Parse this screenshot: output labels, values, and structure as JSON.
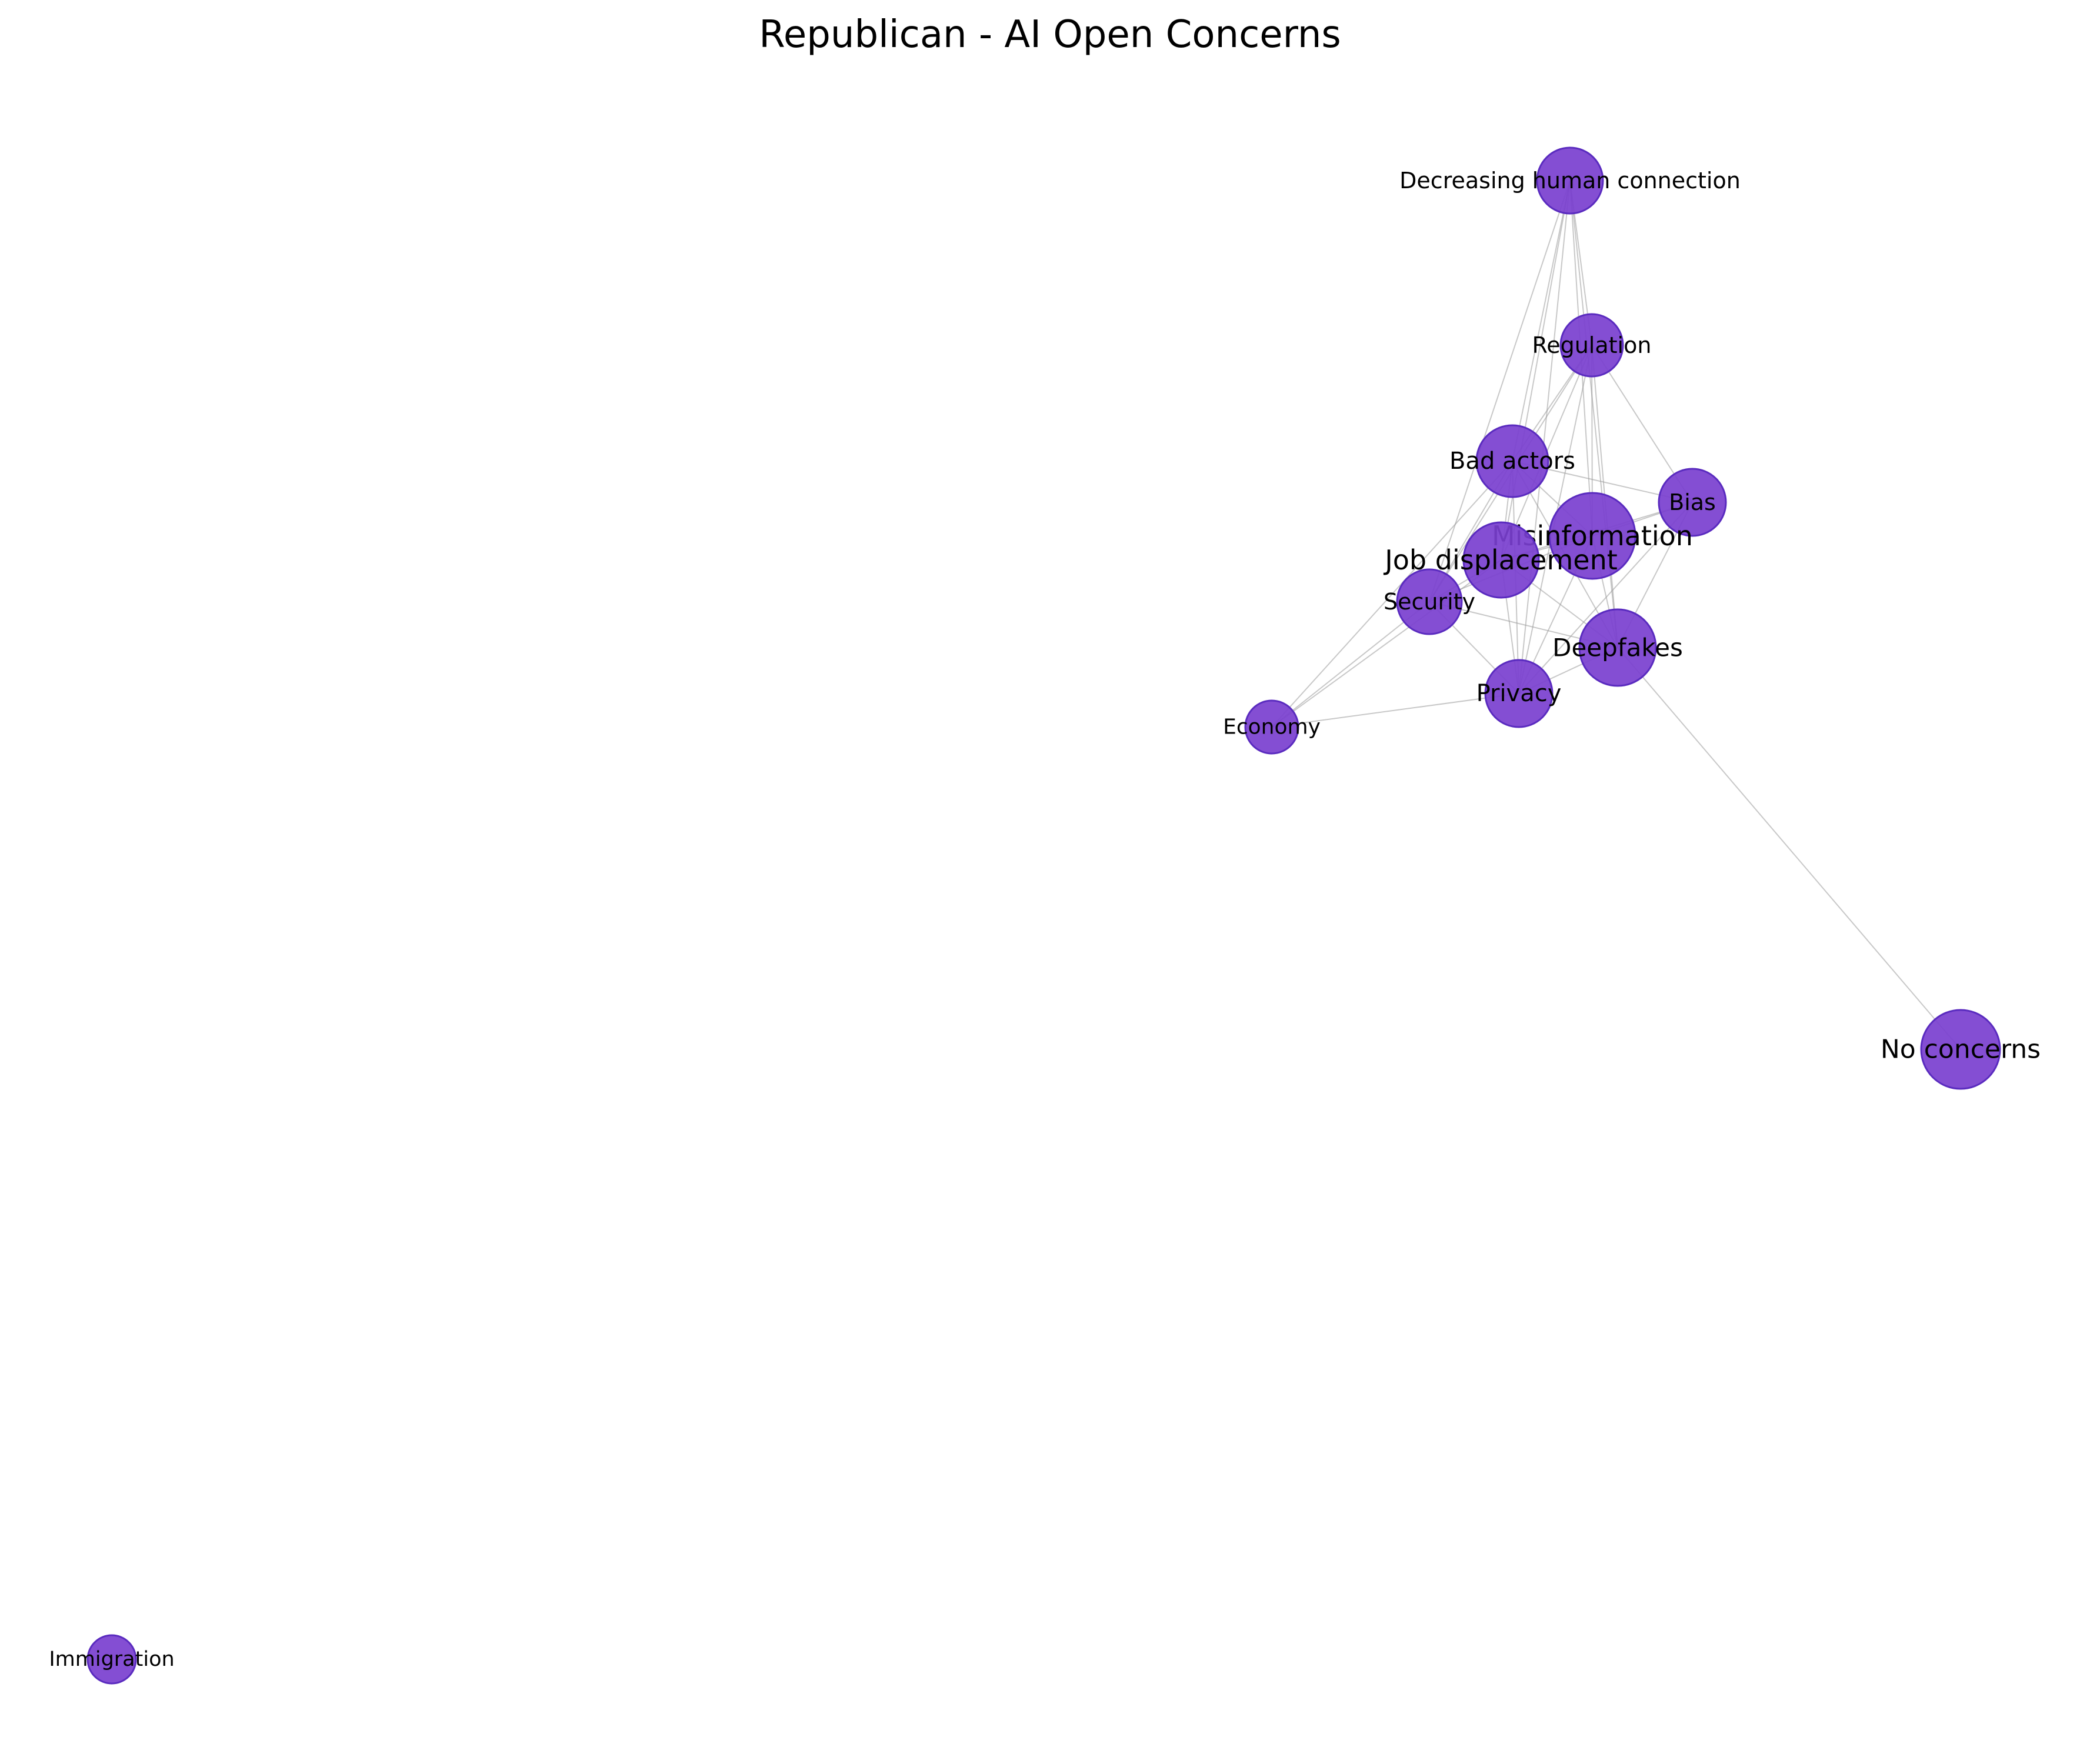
{
  "title": "Republican - AI Open Concerns",
  "colors": {
    "node_fill": "#7a3fcf",
    "node_stroke": "#5a2bbf",
    "edge": "#9a9a9a",
    "text": "#000000"
  },
  "nodes": [
    {
      "id": "decreasing-human-connection",
      "label": "Decreasing human connection"
    },
    {
      "id": "regulation",
      "label": "Regulation"
    },
    {
      "id": "bad-actors",
      "label": "Bad actors"
    },
    {
      "id": "bias",
      "label": "Bias"
    },
    {
      "id": "misinformation",
      "label": "Misinformation"
    },
    {
      "id": "job-displacement",
      "label": "Job displacement"
    },
    {
      "id": "security",
      "label": "Security"
    },
    {
      "id": "deepfakes",
      "label": "Deepfakes"
    },
    {
      "id": "privacy",
      "label": "Privacy"
    },
    {
      "id": "economy",
      "label": "Economy"
    },
    {
      "id": "no-concerns",
      "label": "No concerns"
    },
    {
      "id": "immigration",
      "label": "Immigration"
    }
  ],
  "edges": [
    [
      "decreasing-human-connection",
      "regulation"
    ],
    [
      "decreasing-human-connection",
      "bad-actors"
    ],
    [
      "decreasing-human-connection",
      "misinformation"
    ],
    [
      "decreasing-human-connection",
      "job-displacement"
    ],
    [
      "decreasing-human-connection",
      "security"
    ],
    [
      "decreasing-human-connection",
      "deepfakes"
    ],
    [
      "decreasing-human-connection",
      "privacy"
    ],
    [
      "regulation",
      "bad-actors"
    ],
    [
      "regulation",
      "bias"
    ],
    [
      "regulation",
      "misinformation"
    ],
    [
      "regulation",
      "job-displacement"
    ],
    [
      "regulation",
      "deepfakes"
    ],
    [
      "regulation",
      "privacy"
    ],
    [
      "regulation",
      "security"
    ],
    [
      "bad-actors",
      "bias"
    ],
    [
      "bad-actors",
      "misinformation"
    ],
    [
      "bad-actors",
      "job-displacement"
    ],
    [
      "bad-actors",
      "security"
    ],
    [
      "bad-actors",
      "deepfakes"
    ],
    [
      "bad-actors",
      "privacy"
    ],
    [
      "bad-actors",
      "economy"
    ],
    [
      "bias",
      "misinformation"
    ],
    [
      "bias",
      "job-displacement"
    ],
    [
      "bias",
      "deepfakes"
    ],
    [
      "bias",
      "privacy"
    ],
    [
      "misinformation",
      "job-displacement"
    ],
    [
      "misinformation",
      "security"
    ],
    [
      "misinformation",
      "deepfakes"
    ],
    [
      "misinformation",
      "privacy"
    ],
    [
      "job-displacement",
      "security"
    ],
    [
      "job-displacement",
      "deepfakes"
    ],
    [
      "job-displacement",
      "privacy"
    ],
    [
      "job-displacement",
      "economy"
    ],
    [
      "security",
      "deepfakes"
    ],
    [
      "security",
      "privacy"
    ],
    [
      "security",
      "economy"
    ],
    [
      "deepfakes",
      "privacy"
    ],
    [
      "deepfakes",
      "no-concerns"
    ],
    [
      "privacy",
      "economy"
    ]
  ]
}
